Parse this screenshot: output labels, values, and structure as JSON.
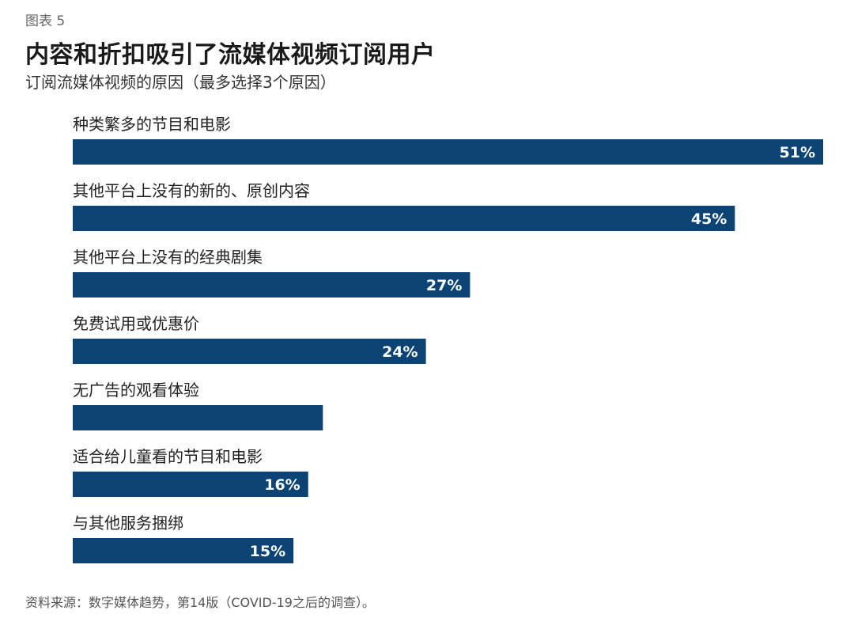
{
  "figure_label": "图表 5",
  "chart_data": {
    "type": "bar",
    "orientation": "horizontal",
    "title": "内容和折扣吸引了流媒体视频订阅用户",
    "subtitle": "订阅流媒体视频的原因（最多选择3个原因）",
    "categories": [
      "种类繁多的节目和电影",
      "其他平台上没有的新的、原创内容",
      "其他平台上没有的经典剧集",
      "免费试用或优惠价",
      "无广告的观看体验",
      "适合给儿童看的节目和电影",
      "与其他服务捆绑"
    ],
    "values": [
      51,
      45,
      27,
      24,
      17,
      16,
      15
    ],
    "data_labels": [
      "51%",
      "45%",
      "27%",
      "24%",
      "",
      "16%",
      "15%"
    ],
    "unit": "%",
    "xlim": [
      0,
      51
    ],
    "bar_color": "#0a4374",
    "label_color": "#ffffff",
    "grid": false,
    "legend": "none"
  },
  "source": "资料来源：数字媒体趋势，第14版（COVID-19之后的调查）。"
}
